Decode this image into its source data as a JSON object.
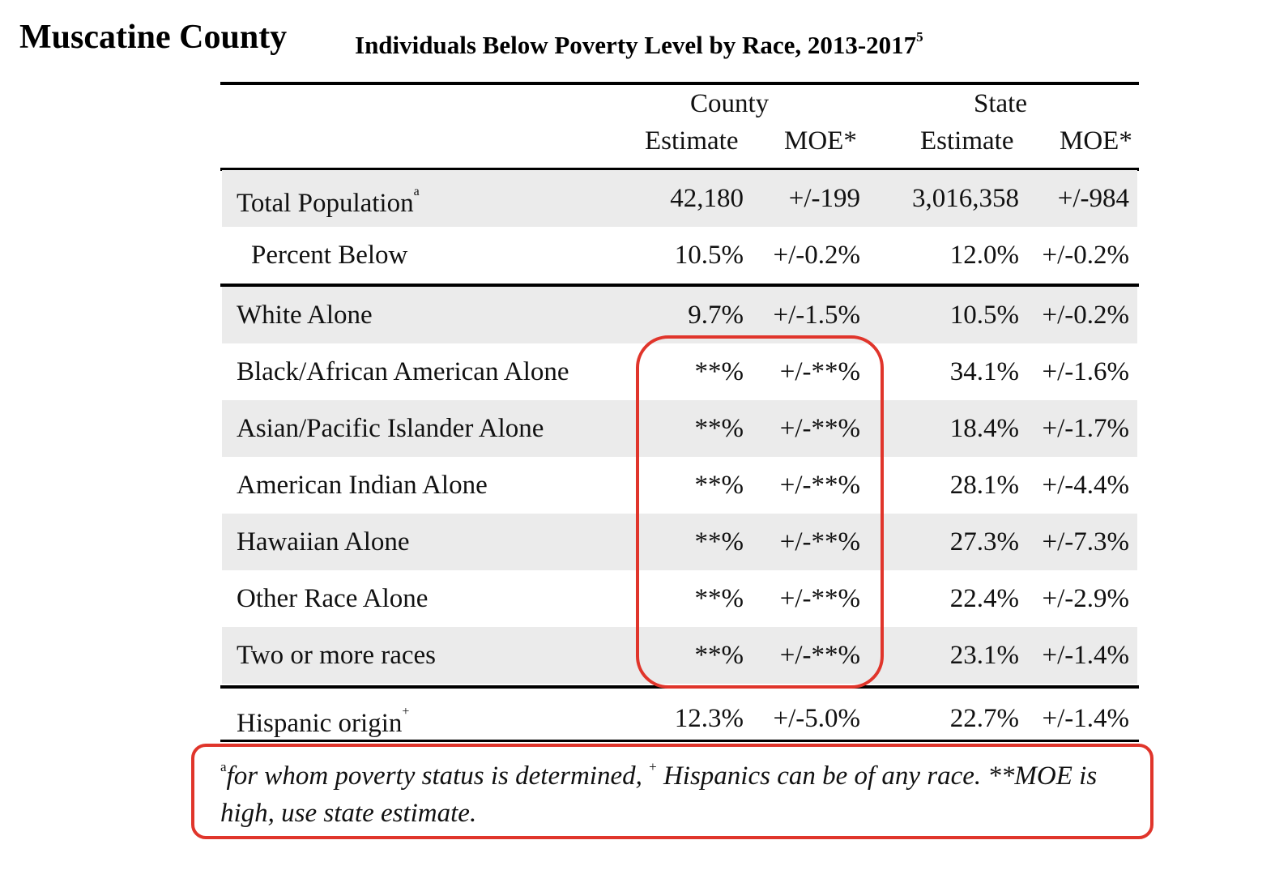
{
  "county_title": "Muscatine County",
  "table_title": "Individuals Below Poverty Level by Race, 2013-2017",
  "table_title_sup": "5",
  "headers": {
    "county": "County",
    "state": "State",
    "estimate": "Estimate",
    "moe": "MOE*"
  },
  "rows": [
    {
      "label": "Total Population",
      "sup": "a",
      "county_est": "42,180",
      "county_moe": "+/-199",
      "state_est": "3,016,358",
      "state_moe": "+/-984"
    },
    {
      "label": "Percent Below",
      "sup": "",
      "county_est": "10.5%",
      "county_moe": "+/-0.2%",
      "state_est": "12.0%",
      "state_moe": "+/-0.2%"
    },
    {
      "label": "White Alone",
      "sup": "",
      "county_est": "9.7%",
      "county_moe": "+/-1.5%",
      "state_est": "10.5%",
      "state_moe": "+/-0.2%"
    },
    {
      "label": "Black/African American Alone",
      "sup": "",
      "county_est": "**%",
      "county_moe": "+/-**%",
      "state_est": "34.1%",
      "state_moe": "+/-1.6%"
    },
    {
      "label": "Asian/Pacific Islander Alone",
      "sup": "",
      "county_est": "**%",
      "county_moe": "+/-**%",
      "state_est": "18.4%",
      "state_moe": "+/-1.7%"
    },
    {
      "label": "American Indian Alone",
      "sup": "",
      "county_est": "**%",
      "county_moe": "+/-**%",
      "state_est": "28.1%",
      "state_moe": "+/-4.4%"
    },
    {
      "label": "Hawaiian Alone",
      "sup": "",
      "county_est": "**%",
      "county_moe": "+/-**%",
      "state_est": "27.3%",
      "state_moe": "+/-7.3%"
    },
    {
      "label": "Other Race Alone",
      "sup": "",
      "county_est": "**%",
      "county_moe": "+/-**%",
      "state_est": "22.4%",
      "state_moe": "+/-2.9%"
    },
    {
      "label": "Two or more races",
      "sup": "",
      "county_est": "**%",
      "county_moe": "+/-**%",
      "state_est": "23.1%",
      "state_moe": "+/-1.4%"
    },
    {
      "label": "Hispanic origin",
      "sup": "+",
      "county_est": "12.3%",
      "county_moe": "+/-5.0%",
      "state_est": "22.7%",
      "state_moe": "+/-1.4%"
    }
  ],
  "footnote": {
    "sup_a": "a",
    "part1": "for whom poverty status is determined, ",
    "sup_plus": "+",
    "part2": " Hispanics can be of any race. **MOE is high, use state estimate."
  },
  "colors": {
    "highlight": "#e0352b",
    "row_shade": "#ebebeb"
  }
}
